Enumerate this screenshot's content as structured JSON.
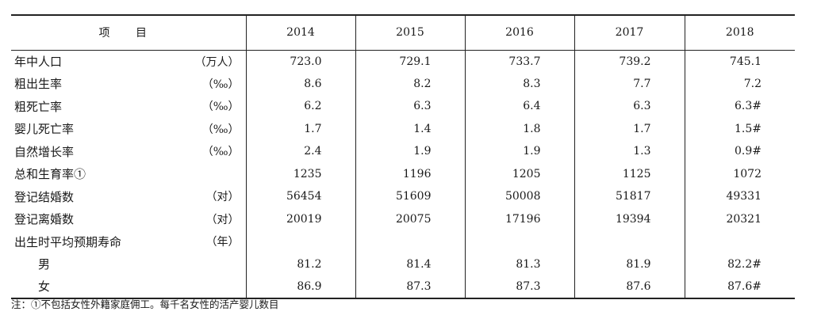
{
  "table": {
    "header": {
      "item": "项 目",
      "years": [
        "2014",
        "2015",
        "2016",
        "2017",
        "2018"
      ]
    },
    "rows": [
      {
        "label": "年中人口",
        "unit": "（万人）",
        "values": [
          "723.0",
          "729.1",
          "733.7",
          "739.2",
          "745.1"
        ]
      },
      {
        "label": "粗出生率",
        "unit": "（‰）",
        "values": [
          "8.6",
          "8.2",
          "8.3",
          "7.7",
          "7.2"
        ]
      },
      {
        "label": "粗死亡率",
        "unit": "（‰）",
        "values": [
          "6.2",
          "6.3",
          "6.4",
          "6.3",
          "6.3#"
        ]
      },
      {
        "label": "婴儿死亡率",
        "unit": "（‰）",
        "values": [
          "1.7",
          "1.4",
          "1.8",
          "1.7",
          "1.5#"
        ]
      },
      {
        "label": "自然增长率",
        "unit": "（‰）",
        "values": [
          "2.4",
          "1.9",
          "1.9",
          "1.3",
          "0.9#"
        ]
      },
      {
        "label": "总和生育率①",
        "unit": "",
        "values": [
          "1235",
          "1196",
          "1205",
          "1125",
          "1072"
        ]
      },
      {
        "label": "登记结婚数",
        "unit": "（对）",
        "values": [
          "56454",
          "51609",
          "50008",
          "51817",
          "49331"
        ]
      },
      {
        "label": "登记离婚数",
        "unit": "（对）",
        "values": [
          "20019",
          "20075",
          "17196",
          "19394",
          "20321"
        ]
      },
      {
        "label": "出生时平均预期寿命",
        "unit": "（年）",
        "values": [
          "",
          "",
          "",
          "",
          ""
        ]
      },
      {
        "label": "男",
        "unit": "",
        "values": [
          "81.2",
          "81.4",
          "81.3",
          "81.9",
          "82.2#"
        ],
        "sub": true
      },
      {
        "label": "女",
        "unit": "",
        "values": [
          "86.9",
          "87.3",
          "87.3",
          "87.6",
          "87.6#"
        ],
        "sub": true
      }
    ]
  },
  "note": "注：①不包括女性外籍家庭佣工。每千名女性的活产婴儿数目"
}
